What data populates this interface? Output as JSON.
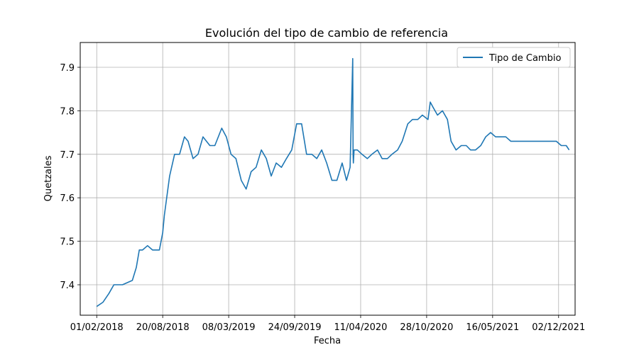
{
  "chart_data": {
    "type": "line",
    "title": "Evolución del tipo de cambio de referencia",
    "xlabel": "Fecha",
    "ylabel": "Quetzales",
    "x_ticks": [
      "01/02/2018",
      "20/08/2018",
      "08/03/2019",
      "24/09/2019",
      "11/04/2020",
      "28/10/2020",
      "16/05/2021",
      "02/12/2021"
    ],
    "y_ticks": [
      "7.4",
      "7.5",
      "7.6",
      "7.7",
      "7.8",
      "7.9"
    ],
    "xlim": [
      "2017-12-13",
      "2022-01-21"
    ],
    "ylim": [
      7.33,
      7.957
    ],
    "grid": true,
    "legend_position": "upper right",
    "series": [
      {
        "name": "Tipo de Cambio",
        "color": "#1f77b4",
        "x": [
          "2018-02-01",
          "2018-02-20",
          "2018-03-10",
          "2018-03-25",
          "2018-04-20",
          "2018-05-20",
          "2018-06-01",
          "2018-06-10",
          "2018-06-20",
          "2018-07-05",
          "2018-07-20",
          "2018-08-10",
          "2018-08-20",
          "2018-08-25",
          "2018-09-10",
          "2018-09-25",
          "2018-10-10",
          "2018-10-25",
          "2018-11-05",
          "2018-11-20",
          "2018-12-05",
          "2018-12-20",
          "2019-01-10",
          "2019-01-25",
          "2019-02-15",
          "2019-03-01",
          "2019-03-15",
          "2019-03-30",
          "2019-04-15",
          "2019-04-30",
          "2019-05-15",
          "2019-05-30",
          "2019-06-15",
          "2019-06-30",
          "2019-07-15",
          "2019-07-30",
          "2019-08-15",
          "2019-08-30",
          "2019-09-15",
          "2019-09-30",
          "2019-10-15",
          "2019-10-30",
          "2019-11-15",
          "2019-11-30",
          "2019-12-15",
          "2019-12-30",
          "2020-01-15",
          "2020-01-30",
          "2020-02-15",
          "2020-02-28",
          "2020-03-10",
          "2020-03-18",
          "2020-03-19",
          "2020-03-20",
          "2020-03-22",
          "2020-03-26",
          "2020-04-01",
          "2020-04-15",
          "2020-05-01",
          "2020-05-15",
          "2020-06-01",
          "2020-06-15",
          "2020-07-01",
          "2020-07-15",
          "2020-08-01",
          "2020-08-15",
          "2020-09-01",
          "2020-09-15",
          "2020-10-01",
          "2020-10-15",
          "2020-11-01",
          "2020-11-08",
          "2020-11-15",
          "2020-11-30",
          "2020-12-15",
          "2020-12-30",
          "2021-01-10",
          "2021-01-25",
          "2021-02-10",
          "2021-02-25",
          "2021-03-10",
          "2021-03-25",
          "2021-04-10",
          "2021-04-25",
          "2021-05-10",
          "2021-05-25",
          "2021-06-10",
          "2021-06-25",
          "2021-07-10",
          "2021-07-25",
          "2021-08-10",
          "2021-08-25",
          "2021-09-10",
          "2021-09-25",
          "2021-10-10",
          "2021-10-25",
          "2021-11-10",
          "2021-11-25",
          "2021-12-10",
          "2021-12-25",
          "2022-01-03"
        ],
        "values": [
          7.35,
          7.36,
          7.38,
          7.4,
          7.4,
          7.41,
          7.44,
          7.48,
          7.48,
          7.49,
          7.48,
          7.48,
          7.52,
          7.56,
          7.65,
          7.7,
          7.7,
          7.74,
          7.73,
          7.69,
          7.7,
          7.74,
          7.72,
          7.72,
          7.76,
          7.74,
          7.7,
          7.69,
          7.64,
          7.62,
          7.66,
          7.67,
          7.71,
          7.69,
          7.65,
          7.68,
          7.67,
          7.69,
          7.71,
          7.77,
          7.77,
          7.7,
          7.7,
          7.69,
          7.71,
          7.68,
          7.64,
          7.64,
          7.68,
          7.64,
          7.67,
          7.92,
          7.7,
          7.68,
          7.71,
          7.71,
          7.71,
          7.7,
          7.69,
          7.7,
          7.71,
          7.69,
          7.69,
          7.7,
          7.71,
          7.73,
          7.77,
          7.78,
          7.78,
          7.79,
          7.78,
          7.82,
          7.81,
          7.79,
          7.8,
          7.78,
          7.73,
          7.71,
          7.72,
          7.72,
          7.71,
          7.71,
          7.72,
          7.74,
          7.75,
          7.74,
          7.74,
          7.74,
          7.73,
          7.73,
          7.73,
          7.73,
          7.73,
          7.73,
          7.73,
          7.73,
          7.73,
          7.73,
          7.72,
          7.72,
          7.71
        ]
      }
    ]
  }
}
